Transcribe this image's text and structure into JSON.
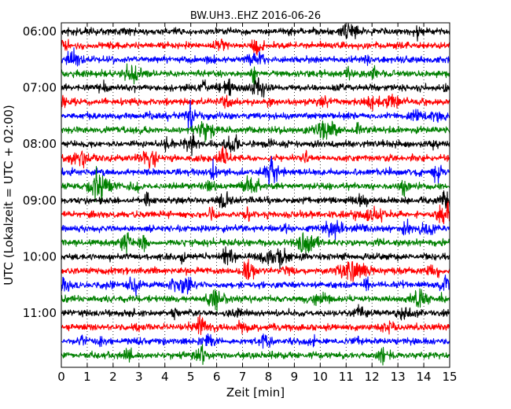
{
  "chart_data": {
    "type": "line",
    "title": "BW.UH3..EHZ 2016-06-26",
    "xlabel": "Zeit  [min]",
    "ylabel": "UTC (Lokalzeit = UTC + 02:00)",
    "xlim": [
      0,
      15
    ],
    "x_ticks": [
      0,
      1,
      2,
      3,
      4,
      5,
      6,
      7,
      8,
      9,
      10,
      11,
      12,
      13,
      14,
      15
    ],
    "y_tick_labels": [
      "06:00",
      "07:00",
      "08:00",
      "09:00",
      "10:00",
      "11:00"
    ],
    "grid": "vertical dotted",
    "trace_colors": [
      "#000000",
      "#ff0000",
      "#0000ff",
      "#008000"
    ],
    "traces": [
      "06:00",
      "06:15",
      "06:30",
      "06:45",
      "07:00",
      "07:15",
      "07:30",
      "07:45",
      "08:00",
      "08:15",
      "08:30",
      "08:45",
      "09:00",
      "09:15",
      "09:30",
      "09:45",
      "10:00",
      "10:15",
      "10:30",
      "10:45",
      "11:00",
      "11:15",
      "11:30",
      "11:45"
    ]
  }
}
